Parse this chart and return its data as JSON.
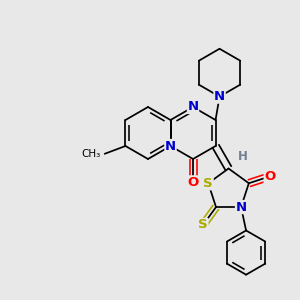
{
  "bg": "#e8e8e8",
  "bc": "#000000",
  "Nc": "#0000cc",
  "Oc": "#ff0000",
  "Sc": "#aaaa00",
  "Hc": "#708090",
  "figsize": [
    3.0,
    3.0
  ],
  "dpi": 100,
  "xlim": [
    0,
    300
  ],
  "ylim": [
    0,
    300
  ]
}
